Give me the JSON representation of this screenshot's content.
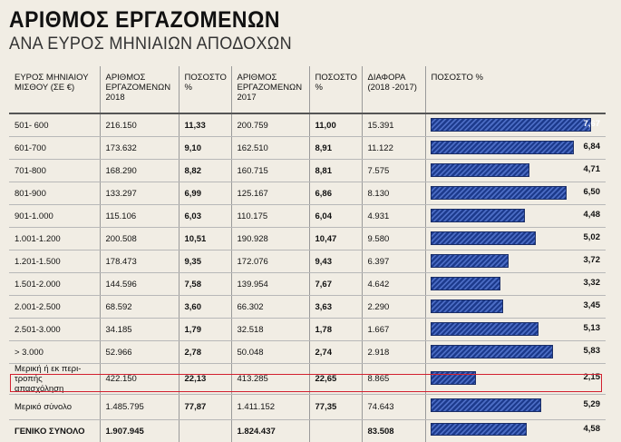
{
  "title": "ΑΡΙΘΜΟΣ ΕΡΓΑΖΟΜΕΝΩΝ",
  "subtitle": "ΑΝΑ ΕΥΡΟΣ ΜΗΝΙΑΙΩΝ ΑΠΟΔΟΧΩΝ",
  "headers": {
    "range": "ΕΥΡΟΣ ΜΗΝΙΑΙΟΥ ΜΙΣΘΟΥ (ΣΕ €)",
    "emp2018": "ΑΡΙΘΜΟΣ ΕΡΓΑΖΟΜΕΝΩΝ 2018",
    "pct2018": "ΠΟΣΟΣΤΟ %",
    "emp2017": "ΑΡΙΘΜΟΣ ΕΡΓΑΖΟΜΕΝΩΝ 2017",
    "pct2017": "ΠΟΣΟΣΤΟ %",
    "diff": "ΔΙΑΦΟΡΑ (2018 -2017)",
    "pctdiff": "ΠΟΣΟΣΤΟ %"
  },
  "rows": [
    {
      "range": "501- 600",
      "emp2018": "216.150",
      "pct2018": "11,33",
      "emp2017": "200.759",
      "pct2017": "11,00",
      "diff": "15.391",
      "change": "7,67",
      "change_value": 7.67
    },
    {
      "range": "601-700",
      "emp2018": "173.632",
      "pct2018": "9,10",
      "emp2017": "162.510",
      "pct2017": "8,91",
      "diff": "11.122",
      "change": "6,84",
      "change_value": 6.84
    },
    {
      "range": "701-800",
      "emp2018": "168.290",
      "pct2018": "8,82",
      "emp2017": "160.715",
      "pct2017": "8,81",
      "diff": "7.575",
      "change": "4,71",
      "change_value": 4.71
    },
    {
      "range": "801-900",
      "emp2018": "133.297",
      "pct2018": "6,99",
      "emp2017": "125.167",
      "pct2017": "6,86",
      "diff": "8.130",
      "change": "6,50",
      "change_value": 6.5
    },
    {
      "range": "901-1.000",
      "emp2018": "115.106",
      "pct2018": "6,03",
      "emp2017": "110.175",
      "pct2017": "6,04",
      "diff": "4.931",
      "change": "4,48",
      "change_value": 4.48
    },
    {
      "range": "1.001-1.200",
      "emp2018": "200.508",
      "pct2018": "10,51",
      "emp2017": "190.928",
      "pct2017": "10,47",
      "diff": "9.580",
      "change": "5,02",
      "change_value": 5.02
    },
    {
      "range": "1.201-1.500",
      "emp2018": "178.473",
      "pct2018": "9,35",
      "emp2017": "172.076",
      "pct2017": "9,43",
      "diff": "6.397",
      "change": "3,72",
      "change_value": 3.72
    },
    {
      "range": "1.501-2.000",
      "emp2018": "144.596",
      "pct2018": "7,58",
      "emp2017": "139.954",
      "pct2017": "7,67",
      "diff": "4.642",
      "change": "3,32",
      "change_value": 3.32
    },
    {
      "range": "2.001-2.500",
      "emp2018": "68.592",
      "pct2018": "3,60",
      "emp2017": "66.302",
      "pct2017": "3,63",
      "diff": "2.290",
      "change": "3,45",
      "change_value": 3.45
    },
    {
      "range": "2.501-3.000",
      "emp2018": "34.185",
      "pct2018": "1,79",
      "emp2017": "32.518",
      "pct2017": "1,78",
      "diff": "1.667",
      "change": "5,13",
      "change_value": 5.13
    },
    {
      "range": "> 3.000",
      "emp2018": "52.966",
      "pct2018": "2,78",
      "emp2017": "50.048",
      "pct2017": "2,74",
      "diff": "2.918",
      "change": "5,83",
      "change_value": 5.83
    },
    {
      "range": "Μερική ή εκ περι-τροπής απασχόληση",
      "emp2018": "422.150",
      "pct2018": "22,13",
      "emp2017": "413.285",
      "pct2017": "22,65",
      "diff": "8.865",
      "change": "2,15",
      "change_value": 2.15
    },
    {
      "range": "Μερικό σύνολο",
      "emp2018": "1.485.795",
      "pct2018": "77,87",
      "emp2017": "1.411.152",
      "pct2017": "77,35",
      "diff": "74.643",
      "change": "5,29",
      "change_value": 5.29
    }
  ],
  "total": {
    "range": "ΓΕΝΙΚΟ ΣΥΝΟΛΟ",
    "emp2018": "1.907.945",
    "pct2018": "",
    "emp2017": "1.824.437",
    "pct2017": "",
    "diff": "83.508",
    "change": "4,58",
    "change_value": 4.58
  },
  "colors": {
    "bar": "#1c3a8c",
    "bar_stripe": "#4b6cc4",
    "total_border": "#d2202f",
    "background": "#f1ede4"
  }
}
